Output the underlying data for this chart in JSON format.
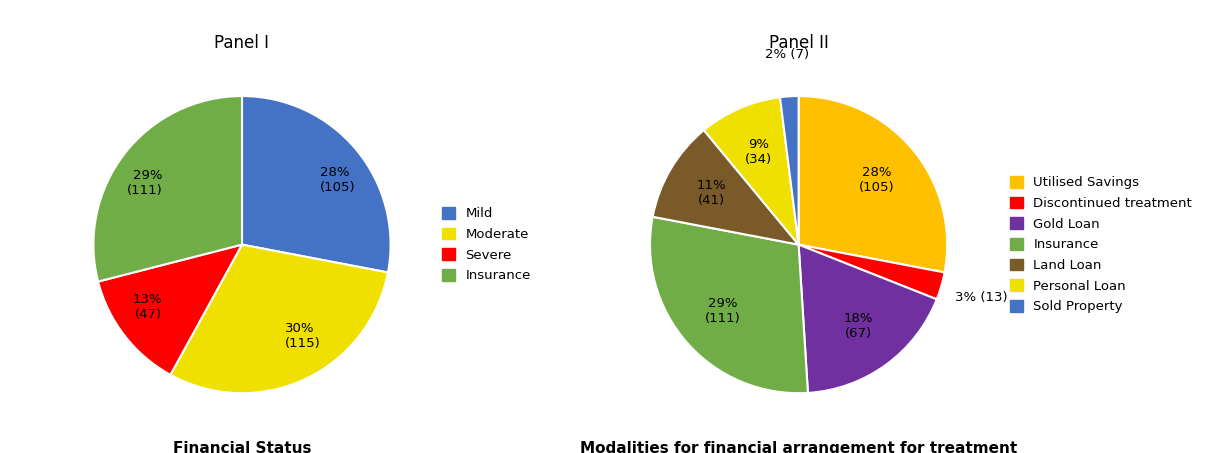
{
  "panel1": {
    "title": "Panel I",
    "xlabel": "Financial Status",
    "labels": [
      "28%\n(105)",
      "30%\n(115)",
      "13%\n(47)",
      "29%\n(111)"
    ],
    "values": [
      28,
      30,
      13,
      29
    ],
    "colors": [
      "#4472C4",
      "#F0E000",
      "#FF0000",
      "#70AD47"
    ],
    "legend_labels": [
      "Mild",
      "Moderate",
      "Severe",
      "Insurance"
    ],
    "legend_colors": [
      "#4472C4",
      "#F0E000",
      "#FF0000",
      "#70AD47"
    ],
    "startangle": 90
  },
  "panel2": {
    "title": "Panel II",
    "xlabel": "Modalities for financial arrangement for treatment",
    "labels": [
      "28%\n(105)",
      "3% (13)",
      "18%\n(67)",
      "29%\n(111)",
      "11%\n(41)",
      "9%\n(34)",
      "2% (7)"
    ],
    "values": [
      28,
      3,
      18,
      29,
      11,
      9,
      2
    ],
    "colors": [
      "#FFC000",
      "#FF0000",
      "#7030A0",
      "#70AD47",
      "#7B5A2A",
      "#F0E000",
      "#4472C4"
    ],
    "legend_labels": [
      "Utilised Savings",
      "Discontinued treatment",
      "Gold Loan",
      "Insurance",
      "Land Loan",
      "Personal Loan",
      "Sold Property"
    ],
    "legend_colors": [
      "#FFC000",
      "#FF0000",
      "#7030A0",
      "#70AD47",
      "#7B5A2A",
      "#F0E000",
      "#4472C4"
    ],
    "startangle": 90
  },
  "bg_color": "#FFFFFF",
  "text_color": "#000000",
  "label_fontsize": 9.5,
  "title_fontsize": 12,
  "xlabel_fontsize": 11,
  "legend_fontsize": 9.5
}
